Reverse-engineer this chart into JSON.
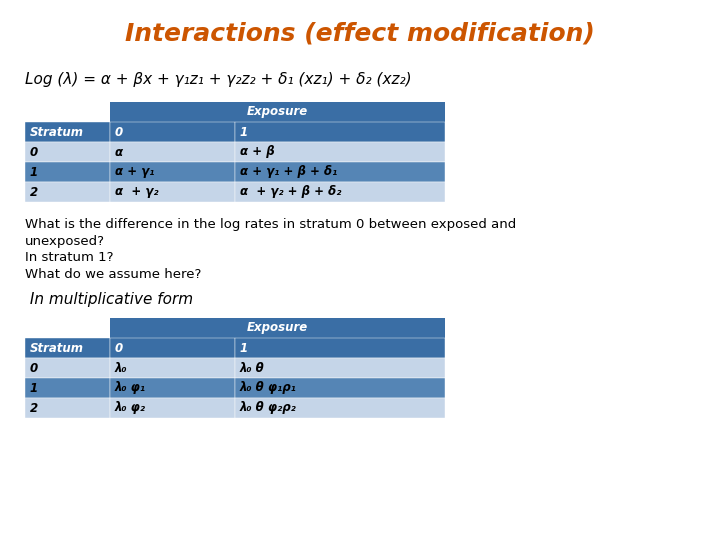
{
  "title": "Interactions (effect modification)",
  "title_color": "#CC5500",
  "title_fontsize": 18,
  "bg_color": "#FFFFFF",
  "formula": "Log (λ) = α + βx + γ₁z₁ + γ₂z₂ + δ₁ (xz₁) + δ₂ (xz₂)",
  "table1_header_bg": "#3A6EA5",
  "table1_header_fg": "#FFFFFF",
  "table1_row_bg_light": "#C5D5E8",
  "table1_row_bg_dark": "#5585B5",
  "table1_data": [
    [
      "Stratum",
      "0",
      "1"
    ],
    [
      "0",
      "α",
      "α + β"
    ],
    [
      "1",
      "α + γ₁",
      "α + γ₁ + β + δ₁"
    ],
    [
      "2",
      "α  + γ₂",
      "α  + γ₂ + β + δ₂"
    ]
  ],
  "table1_exposure_header": "Exposure",
  "table2_data": [
    [
      "Stratum",
      "0",
      "1"
    ],
    [
      "0",
      "λ₀",
      "λ₀ θ"
    ],
    [
      "1",
      "λ₀ φ₁",
      "λ₀ θ φ₁ρ₁"
    ],
    [
      "2",
      "λ₀ φ₂",
      "λ₀ θ φ₂ρ₂"
    ]
  ],
  "table2_exposure_header": "Exposure",
  "body_text": [
    "What is the difference in the log rates in stratum 0 between exposed and",
    "unexposed?",
    "In stratum 1?",
    "What do we assume here?"
  ],
  "mult_form_text": " In multiplicative form",
  "text_fontsize": 9.5,
  "table_fontsize": 8.5,
  "formula_fontsize": 11,
  "mult_fontsize": 11
}
